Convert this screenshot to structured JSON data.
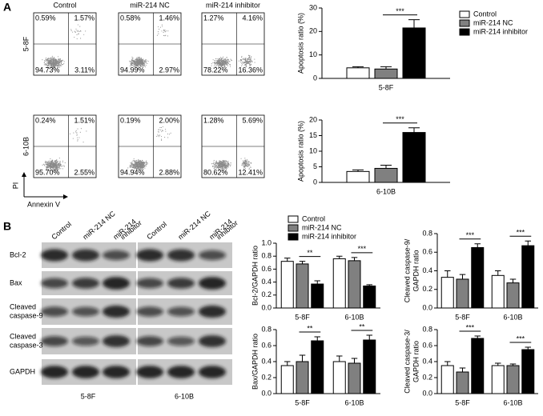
{
  "panel_labels": [
    "A",
    "B"
  ],
  "flow": {
    "column_titles": [
      "Control",
      "miR-214 NC",
      "miR-214 inhibitor"
    ],
    "row_labels": [
      "5-8F",
      "6-10B"
    ],
    "y_axis_label": "PI",
    "x_axis_label": "Annexin V",
    "quadrants": [
      [
        [
          "0.59%",
          "1.57%",
          "94.73%",
          "3.11%"
        ],
        [
          "0.58%",
          "1.46%",
          "94.99%",
          "2.97%"
        ],
        [
          "1.27%",
          "4.16%",
          "78.22%",
          "16.36%"
        ]
      ],
      [
        [
          "0.24%",
          "1.51%",
          "95.70%",
          "2.55%"
        ],
        [
          "0.19%",
          "2.00%",
          "94.94%",
          "2.88%"
        ],
        [
          "1.28%",
          "5.69%",
          "80.62%",
          "12.41%"
        ]
      ]
    ]
  },
  "western": {
    "column_labels": [
      [
        "Control"
      ],
      [
        "miR-214 NC"
      ],
      [
        "miR-214",
        "inhibitor"
      ],
      [
        "Control"
      ],
      [
        "miR-214 NC"
      ],
      [
        "miR-214",
        "inhibitor"
      ]
    ],
    "row_labels": [
      [
        "Bcl-2"
      ],
      [
        "Bax"
      ],
      [
        "Cleaved",
        "caspase-9"
      ],
      [
        "Cleaved",
        "caspase-3"
      ],
      [
        "GAPDH"
      ]
    ],
    "cell_lines": [
      "5-8F",
      "6-10B"
    ]
  },
  "chart_data": [
    {
      "type": "bar",
      "ylabel": [
        "Apoptosis ratio (%)"
      ],
      "categories": [
        "5-8F"
      ],
      "ylim": [
        0,
        30
      ],
      "yticks": [
        0,
        10,
        20,
        30
      ],
      "legend": "right",
      "series": [
        {
          "name": "Control",
          "color": "#ffffff",
          "values": [
            4.5
          ],
          "errors": [
            0.5
          ]
        },
        {
          "name": "miR-214 NC",
          "color": "#808080",
          "values": [
            4
          ],
          "errors": [
            1
          ]
        },
        {
          "name": "miR-214 inhibitor",
          "color": "#000000",
          "values": [
            21.5
          ],
          "errors": [
            3.5
          ]
        }
      ],
      "significance": [
        "***"
      ]
    },
    {
      "type": "bar",
      "ylabel": [
        "Apoptosis ratio (%)"
      ],
      "categories": [
        "6-10B"
      ],
      "ylim": [
        0,
        20
      ],
      "yticks": [
        0,
        5,
        10,
        15,
        20
      ],
      "series": [
        {
          "color": "#ffffff",
          "values": [
            3.5
          ],
          "errors": [
            0.5
          ]
        },
        {
          "color": "#808080",
          "values": [
            4.5
          ],
          "errors": [
            1
          ]
        },
        {
          "color": "#000000",
          "values": [
            16
          ],
          "errors": [
            1.5
          ]
        }
      ],
      "significance": [
        "***"
      ]
    },
    {
      "type": "bar",
      "ylabel": [
        "Bcl-2/GAPDH ratio"
      ],
      "categories": [
        "5-8F",
        "6-10B"
      ],
      "ylim": [
        0,
        1
      ],
      "yticks": [
        {
          "value": 0,
          "label": "0.0"
        },
        {
          "value": 0.2,
          "label": "0.2"
        },
        {
          "value": 0.4,
          "label": "0.4"
        },
        {
          "value": 0.6,
          "label": "0.6"
        },
        {
          "value": 0.8,
          "label": "0.8"
        },
        {
          "value": 1,
          "label": "1.0"
        }
      ],
      "legend": "top",
      "series": [
        {
          "name": "Control",
          "color": "#ffffff",
          "values": [
            0.72,
            0.76
          ],
          "errors": [
            0.05,
            0.04
          ]
        },
        {
          "name": "miR-214 NC",
          "color": "#808080",
          "values": [
            0.68,
            0.73
          ],
          "errors": [
            0.04,
            0.05
          ]
        },
        {
          "name": "miR-214 inhibitor",
          "color": "#000000",
          "values": [
            0.37,
            0.34
          ],
          "errors": [
            0.05,
            0.02
          ]
        }
      ],
      "significance": [
        "**",
        "***"
      ]
    },
    {
      "type": "bar",
      "ylabel": [
        "Cleaved caspase-9/",
        "GAPDH ratio"
      ],
      "categories": [
        "5-8F",
        "6-10B"
      ],
      "ylim": [
        0,
        0.8
      ],
      "yticks": [
        {
          "value": 0,
          "label": "0.0"
        },
        {
          "value": 0.2,
          "label": "0.2"
        },
        {
          "value": 0.4,
          "label": "0.4"
        },
        {
          "value": 0.6,
          "label": "0.6"
        },
        {
          "value": 0.8,
          "label": "0.8"
        }
      ],
      "series": [
        {
          "color": "#ffffff",
          "values": [
            0.33,
            0.35
          ],
          "errors": [
            0.07,
            0.05
          ]
        },
        {
          "color": "#808080",
          "values": [
            0.31,
            0.27
          ],
          "errors": [
            0.05,
            0.04
          ]
        },
        {
          "color": "#000000",
          "values": [
            0.65,
            0.67
          ],
          "errors": [
            0.04,
            0.05
          ]
        }
      ],
      "significance": [
        "***",
        "***"
      ]
    },
    {
      "type": "bar",
      "ylabel": [
        "Bax/GAPDH ratio"
      ],
      "categories": [
        "5-8F",
        "6-10B"
      ],
      "ylim": [
        0,
        0.8
      ],
      "yticks": [
        {
          "value": 0,
          "label": "0.0"
        },
        {
          "value": 0.2,
          "label": "0.2"
        },
        {
          "value": 0.4,
          "label": "0.4"
        },
        {
          "value": 0.6,
          "label": "0.6"
        },
        {
          "value": 0.8,
          "label": "0.8"
        }
      ],
      "series": [
        {
          "color": "#ffffff",
          "values": [
            0.35,
            0.4
          ],
          "errors": [
            0.05,
            0.07
          ]
        },
        {
          "color": "#808080",
          "values": [
            0.4,
            0.38
          ],
          "errors": [
            0.08,
            0.06
          ]
        },
        {
          "color": "#000000",
          "values": [
            0.66,
            0.67
          ],
          "errors": [
            0.05,
            0.06
          ]
        }
      ],
      "significance": [
        "**",
        "**"
      ]
    },
    {
      "type": "bar",
      "ylabel": [
        "Cleaved caspase-3/",
        "GAPDH ratio"
      ],
      "categories": [
        "5-8F",
        "6-10B"
      ],
      "ylim": [
        0,
        0.8
      ],
      "yticks": [
        {
          "value": 0,
          "label": "0.0"
        },
        {
          "value": 0.2,
          "label": "0.2"
        },
        {
          "value": 0.4,
          "label": "0.4"
        },
        {
          "value": 0.6,
          "label": "0.6"
        },
        {
          "value": 0.8,
          "label": "0.8"
        }
      ],
      "series": [
        {
          "color": "#ffffff",
          "values": [
            0.35,
            0.35
          ],
          "errors": [
            0.05,
            0.03
          ]
        },
        {
          "color": "#808080",
          "values": [
            0.27,
            0.35
          ],
          "errors": [
            0.05,
            0.02
          ]
        },
        {
          "color": "#000000",
          "values": [
            0.69,
            0.55
          ],
          "errors": [
            0.03,
            0.03
          ]
        }
      ],
      "significance": [
        "***",
        "***"
      ]
    }
  ]
}
